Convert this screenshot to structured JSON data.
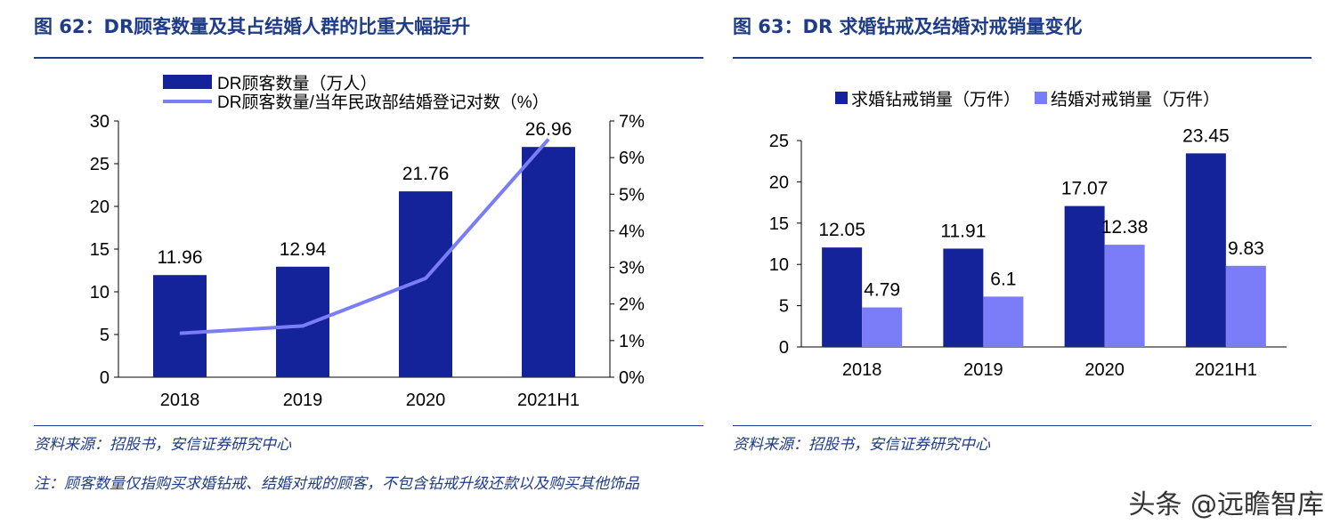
{
  "fig62": {
    "title": "图 62：DR顾客数量及其占结婚人群的比重大幅提升",
    "source": "资料来源：招股书，安信证券研究中心",
    "note": "注：顾客数量仅指购买求婚钻戒、结婚对戒的顾客，不包含钻戒升级还款以及购买其他饰品"
  },
  "fig63": {
    "title": "图 63：DR 求婚钻戒及结婚对戒销量变化",
    "source": "资料来源：招股书，安信证券研究中心"
  },
  "watermark": "头条 @远瞻智库",
  "chart_data": [
    {
      "type": "bar",
      "categories": [
        "2018",
        "2019",
        "2020",
        "2021H1"
      ],
      "series": [
        {
          "name": "DR顾客数量（万人）",
          "type": "bar",
          "axis": "left",
          "color": "#14239a",
          "values": [
            11.96,
            12.94,
            21.76,
            26.96
          ],
          "labels": [
            "11.96",
            "12.94",
            "21.76",
            "26.96"
          ]
        },
        {
          "name": "DR顾客数量/当年民政部结婚登记对数（%）",
          "type": "line",
          "axis": "right",
          "color": "#7b7cf7",
          "values": [
            1.2,
            1.4,
            2.7,
            6.5
          ]
        }
      ],
      "ylim": [
        0,
        30
      ],
      "yticks": [
        "0",
        "5",
        "10",
        "15",
        "20",
        "25",
        "30"
      ],
      "y2lim": [
        0,
        7
      ],
      "y2ticks": [
        "0%",
        "1%",
        "2%",
        "3%",
        "4%",
        "5%",
        "6%",
        "7%"
      ],
      "legend": "top-left"
    },
    {
      "type": "bar",
      "categories": [
        "2018",
        "2019",
        "2020",
        "2021H1"
      ],
      "series": [
        {
          "name": "求婚钻戒销量（万件）",
          "color": "#14239a",
          "values": [
            12.05,
            11.91,
            17.07,
            23.45
          ],
          "labels": [
            "12.05",
            "11.91",
            "17.07",
            "23.45"
          ]
        },
        {
          "name": "结婚对戒销量（万件）",
          "color": "#7b7cf7",
          "values": [
            4.79,
            6.1,
            12.38,
            9.83
          ],
          "labels": [
            "4.79",
            "6.1",
            "12.38",
            "9.83"
          ]
        }
      ],
      "ylim": [
        0,
        25
      ],
      "yticks": [
        "0",
        "5",
        "10",
        "15",
        "20",
        "25"
      ],
      "legend": "top"
    }
  ]
}
